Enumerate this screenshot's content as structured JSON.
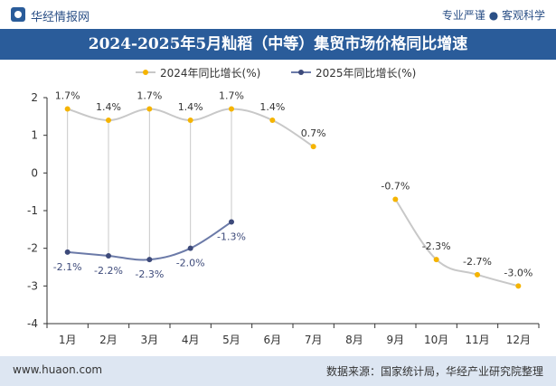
{
  "header": {
    "brand": "华经情报网",
    "tagline": "专业严谨 ● 客观科学"
  },
  "footer": {
    "website": "www.huaon.com",
    "source": "数据来源：国家统计局，华经产业研究院整理"
  },
  "colors": {
    "title_bar": "#2a5c9a",
    "series_2024": "#f5b400",
    "series_2024_line": "#c8c8c8",
    "series_2025": "#3d4a7a",
    "series_2025_line": "#6b7aa8",
    "label_2025": "#3d4a7a"
  },
  "chart_data": {
    "type": "line",
    "title": "2024-2025年5月籼稻（中等）集贸市场价格同比增速",
    "categories": [
      "1月",
      "2月",
      "3月",
      "4月",
      "5月",
      "6月",
      "7月",
      "8月",
      "9月",
      "10月",
      "11月",
      "12月"
    ],
    "y_ticks": [
      "2",
      "1",
      "0",
      "-1",
      "-2",
      "-3",
      "-4"
    ],
    "ylim": [
      -4,
      2
    ],
    "grid": false,
    "legend_position": "top-center",
    "series": [
      {
        "name": "2024年同比增长(%)",
        "values": [
          1.7,
          1.4,
          1.7,
          1.4,
          1.7,
          1.4,
          0.7,
          null,
          -0.7,
          -2.3,
          -2.7,
          -3.0
        ],
        "labels": [
          "1.7%",
          "1.4%",
          "1.7%",
          "1.4%",
          "1.7%",
          "1.4%",
          "0.7%",
          "",
          "-0.7%",
          "-2.3%",
          "-2.7%",
          "-3.0%"
        ]
      },
      {
        "name": "2025年同比增长(%)",
        "values": [
          -2.1,
          -2.2,
          -2.3,
          -2.0,
          -1.3,
          null,
          null,
          null,
          null,
          null,
          null,
          null
        ],
        "labels": [
          "-2.1%",
          "-2.2%",
          "-2.3%",
          "-2.0%",
          "-1.3%",
          "",
          "",
          "",
          "",
          "",
          "",
          ""
        ]
      }
    ]
  }
}
